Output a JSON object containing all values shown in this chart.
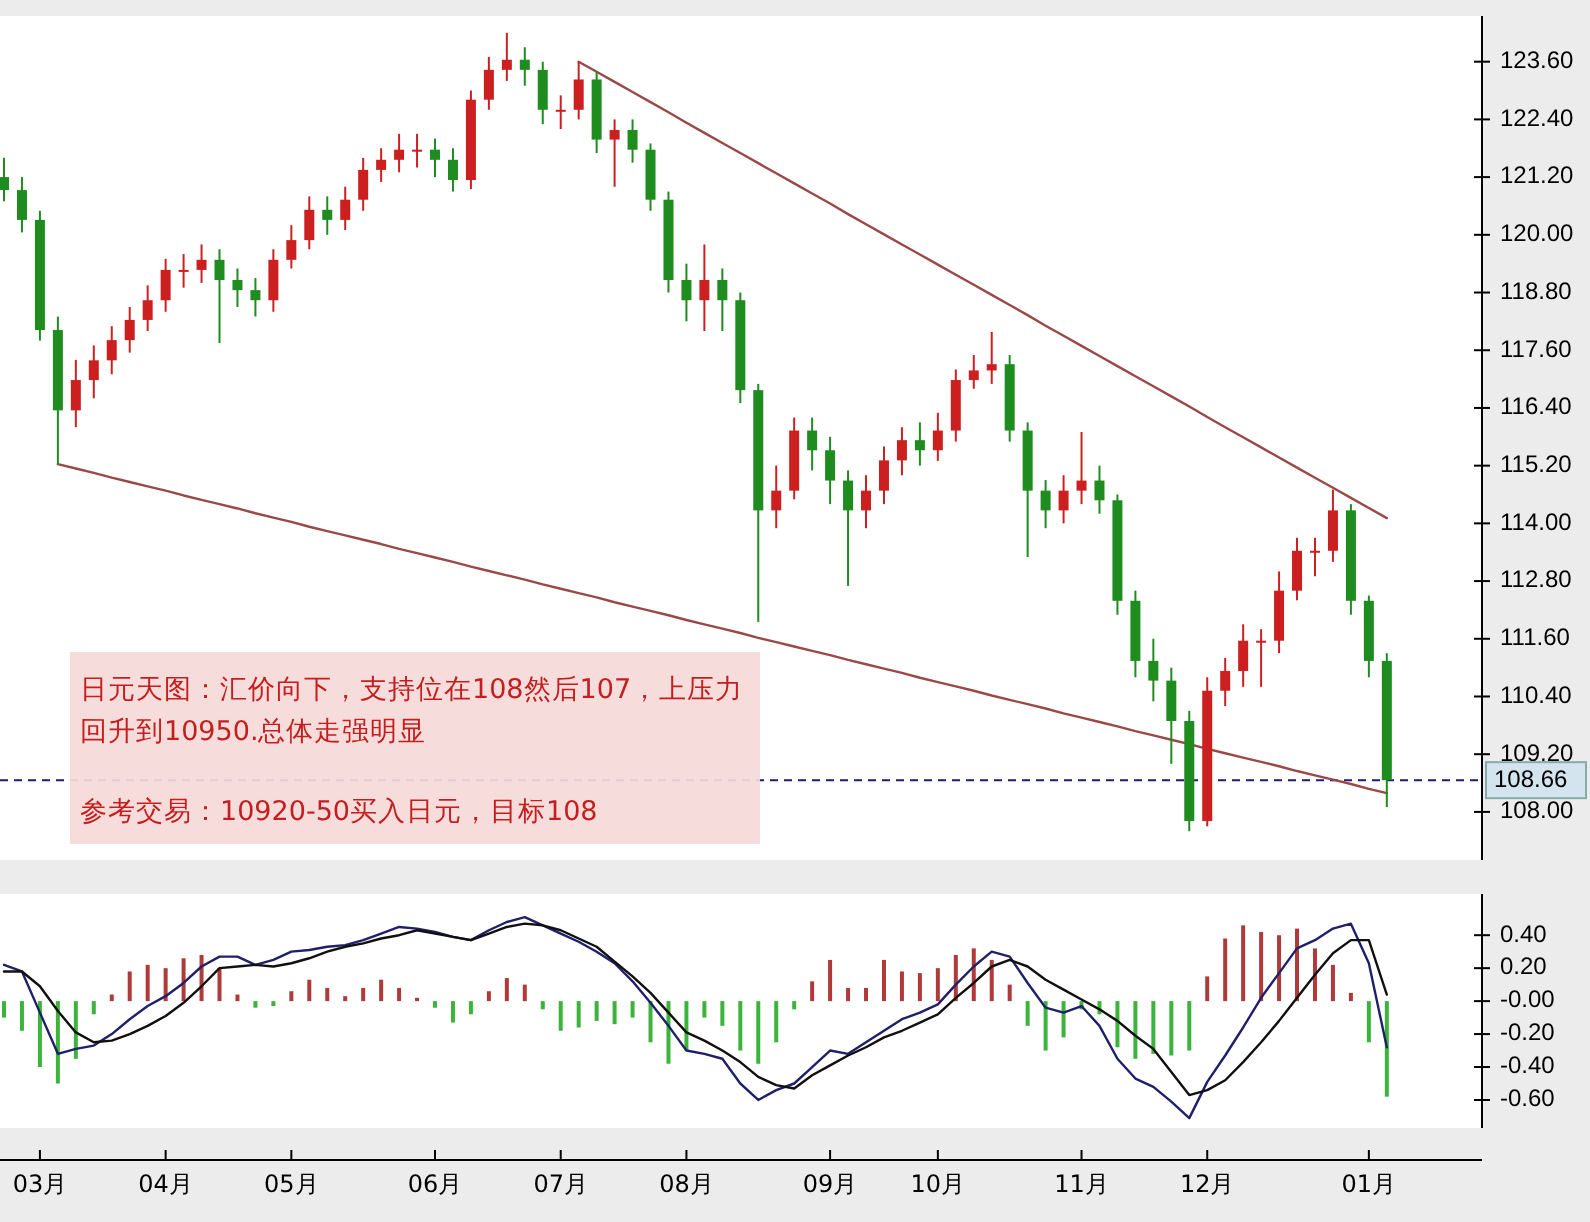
{
  "chart_data": [
    {
      "type": "candlestick",
      "tick_labels": "y",
      "ylim": [
        107.0,
        124.55
      ],
      "yticks": [
        {
          "value": 108,
          "label": "108.00"
        },
        {
          "value": 109.2,
          "label": "109.20"
        },
        {
          "value": 110.4,
          "label": "110.40"
        },
        {
          "value": 111.6,
          "label": "111.60"
        },
        {
          "value": 112.8,
          "label": "112.80"
        },
        {
          "value": 114,
          "label": "114.00"
        },
        {
          "value": 115.2,
          "label": "115.20"
        },
        {
          "value": 116.4,
          "label": "116.40"
        },
        {
          "value": 117.6,
          "label": "117.60"
        },
        {
          "value": 118.8,
          "label": "118.80"
        },
        {
          "value": 120,
          "label": "120.00"
        },
        {
          "value": 121.2,
          "label": "121.20"
        },
        {
          "value": 122.4,
          "label": "122.40"
        },
        {
          "value": 123.6,
          "label": "123.60"
        }
      ],
      "categories": [
        null,
        null,
        null,
        null,
        null,
        null,
        null,
        null,
        null,
        null,
        null,
        null,
        null,
        null,
        null,
        null,
        null,
        null,
        null,
        null,
        null,
        null,
        null,
        null,
        null,
        null,
        null,
        null,
        null,
        null,
        null,
        null,
        null,
        null,
        null,
        null,
        null,
        null,
        null,
        null,
        null,
        null,
        null,
        null,
        null,
        null,
        null,
        null,
        null,
        null,
        null,
        null,
        null,
        null,
        null,
        null,
        null,
        null,
        null,
        null,
        null,
        null,
        null,
        null,
        null,
        null,
        null,
        null,
        null,
        null,
        null,
        null,
        null,
        null,
        null,
        null,
        null,
        null
      ],
      "ohlc": [
        [
          121.2,
          121.6,
          120.7,
          120.93
        ],
        [
          120.93,
          121.2,
          120.05,
          120.31
        ],
        [
          120.31,
          120.5,
          117.8,
          118.02
        ],
        [
          118.02,
          118.3,
          115.23,
          116.35
        ],
        [
          116.35,
          117.4,
          116.0,
          116.98
        ],
        [
          116.98,
          117.7,
          116.6,
          117.39
        ],
        [
          117.39,
          118.1,
          117.1,
          117.81
        ],
        [
          117.81,
          118.5,
          117.55,
          118.23
        ],
        [
          118.23,
          118.95,
          118.0,
          118.64
        ],
        [
          118.64,
          119.5,
          118.4,
          119.27
        ],
        [
          119.27,
          119.6,
          118.9,
          119.27
        ],
        [
          119.27,
          119.8,
          119.0,
          119.48
        ],
        [
          119.48,
          119.7,
          117.75,
          119.06
        ],
        [
          119.06,
          119.3,
          118.5,
          118.85
        ],
        [
          118.85,
          119.1,
          118.3,
          118.64
        ],
        [
          118.64,
          119.7,
          118.4,
          119.48
        ],
        [
          119.48,
          120.2,
          119.3,
          119.89
        ],
        [
          119.89,
          120.8,
          119.7,
          120.52
        ],
        [
          120.52,
          120.8,
          120.0,
          120.31
        ],
        [
          120.31,
          121.0,
          120.1,
          120.73
        ],
        [
          120.73,
          121.6,
          120.5,
          121.35
        ],
        [
          121.35,
          121.8,
          121.1,
          121.56
        ],
        [
          121.56,
          122.1,
          121.3,
          121.77
        ],
        [
          121.77,
          122.1,
          121.4,
          121.77
        ],
        [
          121.77,
          122.0,
          121.2,
          121.56
        ],
        [
          121.56,
          121.8,
          120.9,
          121.14
        ],
        [
          121.14,
          123.0,
          120.95,
          122.81
        ],
        [
          122.81,
          123.7,
          122.6,
          123.43
        ],
        [
          123.43,
          124.2,
          123.2,
          123.64
        ],
        [
          123.64,
          123.9,
          123.1,
          123.43
        ],
        [
          123.43,
          123.6,
          122.3,
          122.6
        ],
        [
          122.6,
          122.9,
          122.2,
          122.6
        ],
        [
          122.6,
          123.6,
          122.4,
          123.23
        ],
        [
          123.23,
          123.4,
          121.7,
          121.98
        ],
        [
          121.98,
          122.4,
          121.0,
          122.18
        ],
        [
          122.18,
          122.4,
          121.5,
          121.77
        ],
        [
          121.77,
          121.9,
          120.5,
          120.73
        ],
        [
          120.73,
          120.9,
          118.8,
          119.06
        ],
        [
          119.06,
          119.4,
          118.2,
          118.64
        ],
        [
          118.64,
          119.8,
          118.0,
          119.06
        ],
        [
          119.06,
          119.3,
          118.0,
          118.64
        ],
        [
          118.64,
          118.8,
          116.5,
          116.77
        ],
        [
          116.77,
          116.9,
          111.95,
          114.27
        ],
        [
          114.27,
          115.2,
          113.9,
          114.68
        ],
        [
          114.68,
          116.2,
          114.5,
          115.93
        ],
        [
          115.93,
          116.2,
          115.1,
          115.52
        ],
        [
          115.52,
          115.8,
          114.4,
          114.89
        ],
        [
          114.89,
          115.1,
          112.7,
          114.27
        ],
        [
          114.27,
          115.0,
          113.9,
          114.68
        ],
        [
          114.68,
          115.6,
          114.4,
          115.31
        ],
        [
          115.31,
          116.0,
          115.0,
          115.73
        ],
        [
          115.73,
          116.1,
          115.2,
          115.52
        ],
        [
          115.52,
          116.3,
          115.3,
          115.93
        ],
        [
          115.93,
          117.2,
          115.7,
          116.98
        ],
        [
          116.98,
          117.5,
          116.8,
          117.18
        ],
        [
          117.18,
          117.98,
          116.9,
          117.31
        ],
        [
          117.31,
          117.5,
          115.7,
          115.93
        ],
        [
          115.93,
          116.1,
          113.3,
          114.68
        ],
        [
          114.68,
          114.9,
          113.9,
          114.27
        ],
        [
          114.27,
          115.0,
          114.0,
          114.68
        ],
        [
          114.68,
          115.9,
          114.4,
          114.89
        ],
        [
          114.89,
          115.2,
          114.2,
          114.48
        ],
        [
          114.48,
          114.6,
          112.1,
          112.39
        ],
        [
          112.39,
          112.6,
          110.8,
          111.14
        ],
        [
          111.14,
          111.6,
          110.3,
          110.73
        ],
        [
          110.73,
          111.0,
          109.0,
          109.89
        ],
        [
          109.89,
          110.1,
          107.6,
          107.81
        ],
        [
          107.81,
          110.8,
          107.7,
          110.52
        ],
        [
          110.52,
          111.2,
          110.2,
          110.93
        ],
        [
          110.93,
          111.9,
          110.6,
          111.56
        ],
        [
          111.56,
          111.8,
          110.6,
          111.56
        ],
        [
          111.56,
          113.0,
          111.3,
          112.6
        ],
        [
          112.6,
          113.7,
          112.4,
          113.43
        ],
        [
          113.43,
          113.7,
          112.9,
          113.43
        ],
        [
          113.43,
          114.7,
          113.2,
          114.27
        ],
        [
          114.27,
          114.4,
          112.1,
          112.39
        ],
        [
          112.39,
          112.5,
          110.8,
          111.14
        ],
        [
          111.14,
          111.3,
          108.1,
          108.66
        ]
      ],
      "series": [
        {
          "type": "line",
          "color": "#9b4848",
          "values": [
            null,
            null,
            null,
            null,
            null,
            null,
            null,
            null,
            null,
            null,
            null,
            null,
            null,
            null,
            null,
            null,
            null,
            null,
            null,
            null,
            null,
            null,
            null,
            null,
            null,
            null,
            null,
            null,
            null,
            null,
            null,
            null,
            123.6,
            123.39,
            123.18,
            122.97,
            122.76,
            122.55,
            122.33,
            122.12,
            121.91,
            121.7,
            121.49,
            121.28,
            121.07,
            120.86,
            120.65,
            120.43,
            120.22,
            120.01,
            119.8,
            119.59,
            119.38,
            119.17,
            118.96,
            118.75,
            118.54,
            118.33,
            118.11,
            117.9,
            117.69,
            117.48,
            117.27,
            117.06,
            116.85,
            116.64,
            116.43,
            116.21,
            116.0,
            115.79,
            115.58,
            115.37,
            115.16,
            114.95,
            114.74,
            114.53,
            114.32,
            114.11
          ]
        },
        {
          "type": "line",
          "color": "#9b4848",
          "values": [
            null,
            null,
            null,
            115.23,
            115.14,
            115.05,
            114.95,
            114.86,
            114.77,
            114.68,
            114.58,
            114.49,
            114.4,
            114.31,
            114.21,
            114.12,
            114.03,
            113.93,
            113.84,
            113.75,
            113.66,
            113.57,
            113.47,
            113.38,
            113.29,
            113.2,
            113.1,
            113.01,
            112.92,
            112.83,
            112.73,
            112.64,
            112.55,
            112.46,
            112.36,
            112.27,
            112.18,
            112.09,
            111.99,
            111.9,
            111.81,
            111.72,
            111.62,
            111.53,
            111.44,
            111.35,
            111.26,
            111.16,
            111.07,
            110.98,
            110.89,
            110.79,
            110.7,
            110.61,
            110.52,
            110.42,
            110.33,
            110.24,
            110.15,
            110.05,
            109.96,
            109.87,
            109.78,
            109.68,
            109.59,
            109.5,
            109.41,
            109.31,
            109.22,
            109.13,
            109.04,
            108.95,
            108.85,
            108.76,
            108.67,
            108.58,
            108.48,
            108.39
          ]
        }
      ],
      "ref_lines": [
        {
          "axis": "y",
          "value": 108.66,
          "label": "108.66",
          "line_style": "dashed",
          "color": "#1a1a80"
        }
      ],
      "annotations": [
        "日元天图：汇价向下，支持位在108然后107，上压力回升到10950.总体走强明显",
        "参考交易：10920-50买入日元，目标108"
      ]
    },
    {
      "type": "bar",
      "ylim": [
        -0.77,
        0.65
      ],
      "yticks": [
        {
          "value": 0.4,
          "label": "0.40"
        },
        {
          "value": 0.2,
          "label": "0.20"
        },
        {
          "value": 0,
          "label": "-0.00"
        },
        {
          "value": -0.2,
          "label": "-0.20"
        },
        {
          "value": -0.4,
          "label": "-0.40"
        },
        {
          "value": -0.6,
          "label": "-0.60"
        }
      ],
      "categories": [
        null,
        null,
        "03月",
        null,
        null,
        null,
        null,
        null,
        null,
        "04月",
        null,
        null,
        null,
        null,
        null,
        null,
        "05月",
        null,
        null,
        null,
        null,
        null,
        null,
        null,
        "06月",
        null,
        null,
        null,
        null,
        null,
        null,
        "07月",
        null,
        null,
        null,
        null,
        null,
        null,
        "08月",
        null,
        null,
        null,
        null,
        null,
        null,
        null,
        "09月",
        null,
        null,
        null,
        null,
        null,
        "10月",
        null,
        null,
        null,
        null,
        null,
        null,
        null,
        "11月",
        null,
        null,
        null,
        null,
        null,
        null,
        "12月",
        null,
        null,
        null,
        null,
        null,
        null,
        null,
        null,
        "01月",
        null
      ],
      "series": [
        {
          "color": "#b03a3a",
          "values": [
            null,
            null,
            null,
            null,
            null,
            null,
            0.04,
            0.18,
            0.22,
            0.2,
            0.26,
            0.28,
            0.2,
            0.04,
            null,
            null,
            0.06,
            0.13,
            0.08,
            0.03,
            0.08,
            0.13,
            0.08,
            0.02,
            null,
            null,
            null,
            0.06,
            0.14,
            0.1,
            null,
            null,
            null,
            null,
            null,
            null,
            null,
            null,
            null,
            null,
            null,
            null,
            null,
            null,
            null,
            0.12,
            0.25,
            0.08,
            0.08,
            0.25,
            0.18,
            0.17,
            0.2,
            0.28,
            0.32,
            0.25,
            0.1,
            null,
            null,
            null,
            null,
            null,
            null,
            null,
            null,
            null,
            null,
            0.15,
            0.38,
            0.46,
            0.42,
            0.4,
            0.44,
            0.32,
            0.22,
            0.05,
            null,
            null
          ]
        },
        {
          "color": "#3cb43c",
          "values": [
            -0.1,
            -0.18,
            -0.4,
            -0.5,
            -0.35,
            -0.08,
            null,
            null,
            null,
            null,
            null,
            null,
            null,
            null,
            -0.04,
            -0.03,
            null,
            null,
            null,
            null,
            null,
            null,
            null,
            null,
            -0.04,
            -0.13,
            -0.08,
            null,
            null,
            null,
            -0.05,
            -0.18,
            -0.16,
            -0.12,
            -0.14,
            -0.1,
            -0.25,
            -0.38,
            -0.3,
            -0.1,
            -0.15,
            -0.3,
            -0.38,
            -0.25,
            -0.05,
            null,
            null,
            null,
            null,
            null,
            null,
            null,
            null,
            null,
            null,
            null,
            null,
            -0.15,
            -0.3,
            -0.22,
            -0.05,
            -0.08,
            -0.28,
            -0.35,
            -0.32,
            -0.33,
            -0.3,
            null,
            null,
            null,
            null,
            null,
            null,
            null,
            null,
            null,
            -0.25,
            -0.58
          ]
        },
        {
          "type": "line",
          "color": "#20206a",
          "values": [
            0.22,
            0.18,
            -0.07,
            -0.32,
            -0.29,
            -0.27,
            -0.2,
            -0.11,
            -0.03,
            0.03,
            0.11,
            0.21,
            0.27,
            0.27,
            0.22,
            0.25,
            0.3,
            0.31,
            0.33,
            0.34,
            0.37,
            0.41,
            0.45,
            0.44,
            0.42,
            0.39,
            0.37,
            0.43,
            0.48,
            0.51,
            0.46,
            0.41,
            0.36,
            0.3,
            0.23,
            0.12,
            -0.01,
            -0.15,
            -0.3,
            -0.32,
            -0.35,
            -0.5,
            -0.6,
            -0.54,
            -0.5,
            -0.4,
            -0.3,
            -0.32,
            -0.25,
            -0.18,
            -0.11,
            -0.07,
            -0.02,
            0.1,
            0.21,
            0.3,
            0.27,
            0.11,
            -0.04,
            -0.07,
            -0.03,
            -0.15,
            -0.35,
            -0.47,
            -0.52,
            -0.61,
            -0.71,
            -0.49,
            -0.33,
            -0.16,
            0.02,
            0.17,
            0.32,
            0.37,
            0.44,
            0.47,
            0.23,
            -0.28
          ]
        },
        {
          "type": "line",
          "color": "#101010",
          "values": [
            0.18,
            0.18,
            0.09,
            -0.06,
            -0.19,
            -0.25,
            -0.24,
            -0.2,
            -0.15,
            -0.09,
            -0.01,
            0.09,
            0.2,
            0.21,
            0.22,
            0.21,
            0.23,
            0.26,
            0.3,
            0.33,
            0.35,
            0.38,
            0.4,
            0.43,
            0.41,
            0.39,
            0.37,
            0.41,
            0.45,
            0.47,
            0.46,
            0.43,
            0.38,
            0.33,
            0.24,
            0.15,
            0.05,
            -0.07,
            -0.19,
            -0.24,
            -0.3,
            -0.37,
            -0.46,
            -0.51,
            -0.53,
            -0.45,
            -0.39,
            -0.33,
            -0.28,
            -0.22,
            -0.18,
            -0.13,
            -0.08,
            0.02,
            0.11,
            0.21,
            0.25,
            0.21,
            0.13,
            0.07,
            0.01,
            -0.05,
            -0.12,
            -0.21,
            -0.29,
            -0.43,
            -0.57,
            -0.54,
            -0.48,
            -0.37,
            -0.25,
            -0.12,
            0.02,
            0.16,
            0.29,
            0.37,
            0.37,
            0.04
          ]
        }
      ]
    }
  ]
}
